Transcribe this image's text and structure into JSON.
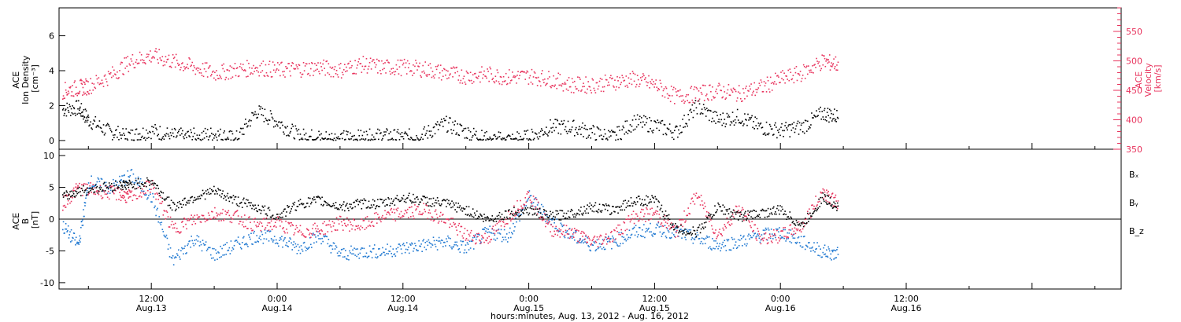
{
  "chart_data": {
    "type": "scatter",
    "xlabel": "hours:minutes, Aug. 13, 2012 - Aug. 16, 2012",
    "x_range_hours": [
      3.2,
      104.5
    ],
    "x_ticks": [
      {
        "hours": 12,
        "time": "12:00",
        "date": "Aug.13"
      },
      {
        "hours": 24,
        "time": "0:00",
        "date": "Aug.14"
      },
      {
        "hours": 36,
        "time": "12:00",
        "date": "Aug.14"
      },
      {
        "hours": 48,
        "time": "0:00",
        "date": "Aug.15"
      },
      {
        "hours": 60,
        "time": "12:00",
        "date": "Aug.15"
      },
      {
        "hours": 72,
        "time": "0:00",
        "date": "Aug.16"
      },
      {
        "hours": 84,
        "time": "12:00",
        "date": "Aug.16"
      }
    ],
    "panels": [
      {
        "name": "top",
        "left_axis": {
          "label_lines": [
            "ACE",
            "Ion Density",
            "[cm⁻³]"
          ],
          "ylim": [
            -0.5,
            7.6
          ],
          "ticks": [
            "0",
            "2",
            "4",
            "6"
          ],
          "color": "#000000"
        },
        "right_axis": {
          "label_lines": [
            "ACE",
            "Velocity",
            "[km/s]"
          ],
          "ylim": [
            350,
            590
          ],
          "ticks": [
            "350",
            "400",
            "450",
            "500",
            "550"
          ],
          "color": "#e8335d"
        },
        "series": [
          {
            "key": "density",
            "axis": "left",
            "color": "#000000",
            "points": [
              [
                3.5,
                1.8
              ],
              [
                5,
                1.9
              ],
              [
                6,
                1.2
              ],
              [
                8,
                0.5
              ],
              [
                10,
                0.3
              ],
              [
                12,
                0.6
              ],
              [
                14,
                0.3
              ],
              [
                16,
                0.3
              ],
              [
                18,
                0.4
              ],
              [
                20,
                0.1
              ],
              [
                22,
                1.7
              ],
              [
                24,
                1.1
              ],
              [
                26,
                0.3
              ],
              [
                28,
                0.2
              ],
              [
                30,
                0.2
              ],
              [
                32,
                0.2
              ],
              [
                34,
                0.3
              ],
              [
                36,
                0.2
              ],
              [
                38,
                0.4
              ],
              [
                40,
                1.0
              ],
              [
                42,
                0.5
              ],
              [
                44,
                0.1
              ],
              [
                46,
                0.1
              ],
              [
                48,
                0.2
              ],
              [
                50,
                0.8
              ],
              [
                52,
                0.8
              ],
              [
                54,
                0.5
              ],
              [
                56,
                0.2
              ],
              [
                58,
                1.1
              ],
              [
                60,
                0.9
              ],
              [
                62,
                0.5
              ],
              [
                64,
                2.0
              ],
              [
                66,
                1.2
              ],
              [
                68,
                1.4
              ],
              [
                70,
                0.8
              ],
              [
                72,
                0.6
              ],
              [
                74,
                0.8
              ],
              [
                76,
                1.6
              ],
              [
                77.5,
                1.4
              ]
            ]
          },
          {
            "key": "velocity",
            "axis": "right",
            "color": "#e8335d",
            "points": [
              [
                3.5,
                450
              ],
              [
                5,
                455
              ],
              [
                6,
                458
              ],
              [
                8,
                475
              ],
              [
                10,
                500
              ],
              [
                12,
                510
              ],
              [
                14,
                500
              ],
              [
                16,
                490
              ],
              [
                18,
                480
              ],
              [
                20,
                485
              ],
              [
                22,
                490
              ],
              [
                24,
                485
              ],
              [
                26,
                487
              ],
              [
                28,
                490
              ],
              [
                30,
                485
              ],
              [
                32,
                495
              ],
              [
                34,
                490
              ],
              [
                36,
                490
              ],
              [
                38,
                487
              ],
              [
                40,
                480
              ],
              [
                42,
                475
              ],
              [
                44,
                478
              ],
              [
                46,
                473
              ],
              [
                48,
                475
              ],
              [
                50,
                470
              ],
              [
                52,
                460
              ],
              [
                54,
                460
              ],
              [
                56,
                465
              ],
              [
                58,
                470
              ],
              [
                60,
                460
              ],
              [
                62,
                440
              ],
              [
                64,
                445
              ],
              [
                66,
                450
              ],
              [
                68,
                445
              ],
              [
                70,
                455
              ],
              [
                72,
                470
              ],
              [
                74,
                480
              ],
              [
                76,
                500
              ],
              [
                77.5,
                495
              ]
            ]
          }
        ]
      },
      {
        "name": "bottom",
        "left_axis": {
          "label_lines": [
            "ACE",
            "B",
            "[nT]"
          ],
          "ylim": [
            -11,
            11
          ],
          "ticks": [
            "-10",
            "-5",
            "0",
            "5",
            "10"
          ],
          "color": "#000000"
        },
        "legend": [
          "Bₓ",
          "Bᵧ",
          "B_z"
        ],
        "legend_position": "right",
        "series": [
          {
            "key": "Bx",
            "name": "Bₓ",
            "color": "#000000",
            "points": [
              [
                3.5,
                3.5
              ],
              [
                5,
                4.5
              ],
              [
                7,
                5.0
              ],
              [
                9,
                5.5
              ],
              [
                10,
                5.5
              ],
              [
                12,
                6.0
              ],
              [
                14,
                2.0
              ],
              [
                16,
                3.5
              ],
              [
                18,
                4.5
              ],
              [
                20,
                3.0
              ],
              [
                22,
                2.0
              ],
              [
                24,
                0.5
              ],
              [
                26,
                2.5
              ],
              [
                28,
                3.0
              ],
              [
                30,
                2.0
              ],
              [
                32,
                2.5
              ],
              [
                34,
                2.5
              ],
              [
                36,
                3.5
              ],
              [
                38,
                3.0
              ],
              [
                40,
                2.5
              ],
              [
                42,
                1.5
              ],
              [
                44,
                0.0
              ],
              [
                46,
                1.0
              ],
              [
                48,
                1.5
              ],
              [
                50,
                0.5
              ],
              [
                52,
                1.0
              ],
              [
                54,
                2.0
              ],
              [
                56,
                1.5
              ],
              [
                58,
                3.0
              ],
              [
                60,
                3.0
              ],
              [
                62,
                -1.5
              ],
              [
                64,
                -2.0
              ],
              [
                66,
                2.0
              ],
              [
                68,
                0.5
              ],
              [
                70,
                1.0
              ],
              [
                72,
                1.5
              ],
              [
                74,
                -1.0
              ],
              [
                76,
                3.5
              ],
              [
                77.5,
                2.0
              ]
            ]
          },
          {
            "key": "By",
            "name": "Bᵧ",
            "color": "#1f78d1",
            "points": [
              [
                3.5,
                -1.0
              ],
              [
                5,
                -4.0
              ],
              [
                6,
                6.0
              ],
              [
                8,
                5.0
              ],
              [
                10,
                7.0
              ],
              [
                12,
                3.5
              ],
              [
                14,
                -6.5
              ],
              [
                16,
                -3.0
              ],
              [
                18,
                -5.5
              ],
              [
                20,
                -4.0
              ],
              [
                22,
                -2.5
              ],
              [
                24,
                -3.0
              ],
              [
                26,
                -4.5
              ],
              [
                28,
                -2.5
              ],
              [
                30,
                -5.5
              ],
              [
                32,
                -5.0
              ],
              [
                34,
                -5.0
              ],
              [
                36,
                -4.5
              ],
              [
                38,
                -4.0
              ],
              [
                40,
                -3.5
              ],
              [
                42,
                -4.5
              ],
              [
                44,
                -2.0
              ],
              [
                46,
                -2.5
              ],
              [
                48,
                3.5
              ],
              [
                50,
                0.0
              ],
              [
                52,
                -2.5
              ],
              [
                54,
                -4.0
              ],
              [
                56,
                -3.5
              ],
              [
                58,
                -2.0
              ],
              [
                60,
                -1.5
              ],
              [
                62,
                -2.0
              ],
              [
                64,
                -3.0
              ],
              [
                66,
                -4.0
              ],
              [
                68,
                -3.5
              ],
              [
                70,
                -2.5
              ],
              [
                72,
                -2.0
              ],
              [
                74,
                -3.5
              ],
              [
                76,
                -5.0
              ],
              [
                77.5,
                -5.5
              ]
            ]
          },
          {
            "key": "Bz",
            "name": "B_z",
            "color": "#e8335d",
            "points": [
              [
                3.5,
                2.5
              ],
              [
                5,
                5.0
              ],
              [
                7,
                4.5
              ],
              [
                9,
                4.0
              ],
              [
                10,
                3.5
              ],
              [
                12,
                5.5
              ],
              [
                14,
                -1.5
              ],
              [
                16,
                0.0
              ],
              [
                18,
                1.0
              ],
              [
                20,
                0.5
              ],
              [
                22,
                -1.0
              ],
              [
                24,
                -0.5
              ],
              [
                26,
                -2.0
              ],
              [
                28,
                -1.5
              ],
              [
                30,
                -0.5
              ],
              [
                32,
                -1.0
              ],
              [
                34,
                0.5
              ],
              [
                36,
                1.0
              ],
              [
                38,
                1.5
              ],
              [
                40,
                0.0
              ],
              [
                42,
                -2.5
              ],
              [
                44,
                -3.0
              ],
              [
                46,
                0.5
              ],
              [
                48,
                4.0
              ],
              [
                50,
                -1.5
              ],
              [
                52,
                -2.0
              ],
              [
                54,
                -3.5
              ],
              [
                56,
                -2.5
              ],
              [
                58,
                0.5
              ],
              [
                60,
                1.0
              ],
              [
                62,
                -2.0
              ],
              [
                64,
                4.0
              ],
              [
                66,
                -2.5
              ],
              [
                68,
                2.0
              ],
              [
                70,
                -3.0
              ],
              [
                72,
                -2.5
              ],
              [
                74,
                -1.0
              ],
              [
                76,
                4.5
              ],
              [
                77.5,
                2.5
              ]
            ]
          }
        ]
      }
    ]
  }
}
